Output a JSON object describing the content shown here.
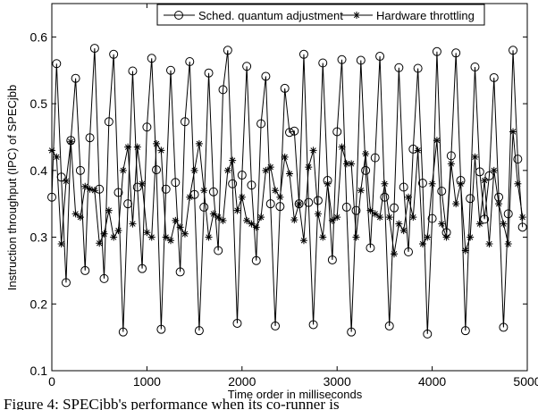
{
  "chart_data": {
    "type": "line",
    "title": "",
    "xlabel": "Time order in milliseconds",
    "ylabel": "Instruction throughput (IPC) of SPECjbb",
    "xlim": [
      0,
      5000
    ],
    "ylim": [
      0.1,
      0.65
    ],
    "x_ticks": [
      0,
      1000,
      2000,
      3000,
      4000,
      5000
    ],
    "y_ticks": [
      0.1,
      0.2,
      0.3,
      0.4,
      0.5,
      0.6
    ],
    "x_tick_labels": [
      "0",
      "1000",
      "2000",
      "3000",
      "4000",
      "5000"
    ],
    "y_tick_labels": [
      "0.1",
      "0.2",
      "0.3",
      "0.4",
      "0.5",
      "0.6"
    ],
    "grid": false,
    "legend_position": "top",
    "caption_fragment": "Figure 4:  SPECjbb's performance when its co-runner is",
    "series": [
      {
        "name": "Sched. quantum adjustment",
        "marker": "circle",
        "color": "#000000",
        "x": [
          0,
          50,
          100,
          150,
          200,
          250,
          300,
          350,
          400,
          450,
          500,
          550,
          600,
          650,
          700,
          750,
          800,
          850,
          900,
          950,
          1000,
          1050,
          1100,
          1150,
          1200,
          1250,
          1300,
          1350,
          1400,
          1450,
          1500,
          1550,
          1600,
          1650,
          1700,
          1750,
          1800,
          1850,
          1900,
          1950,
          2000,
          2050,
          2100,
          2150,
          2200,
          2250,
          2300,
          2350,
          2400,
          2450,
          2500,
          2550,
          2600,
          2650,
          2700,
          2750,
          2800,
          2850,
          2900,
          2950,
          3000,
          3050,
          3100,
          3150,
          3200,
          3250,
          3300,
          3350,
          3400,
          3450,
          3500,
          3550,
          3600,
          3650,
          3700,
          3750,
          3800,
          3850,
          3900,
          3950,
          4000,
          4050,
          4100,
          4150,
          4200,
          4250,
          4300,
          4350,
          4400,
          4450,
          4500,
          4550,
          4600,
          4650,
          4700,
          4750,
          4800,
          4850,
          4900,
          4950
        ],
        "values": [
          0.36,
          0.56,
          0.39,
          0.232,
          0.445,
          0.538,
          0.4,
          0.25,
          0.449,
          0.583,
          0.372,
          0.238,
          0.473,
          0.574,
          0.367,
          0.158,
          0.35,
          0.549,
          0.375,
          0.253,
          0.465,
          0.568,
          0.401,
          0.162,
          0.372,
          0.55,
          0.382,
          0.248,
          0.473,
          0.563,
          0.364,
          0.16,
          0.345,
          0.546,
          0.368,
          0.28,
          0.521,
          0.58,
          0.38,
          0.171,
          0.393,
          0.556,
          0.378,
          0.265,
          0.47,
          0.541,
          0.35,
          0.167,
          0.346,
          0.523,
          0.457,
          0.459,
          0.35,
          0.574,
          0.352,
          0.169,
          0.355,
          0.561,
          0.385,
          0.266,
          0.458,
          0.566,
          0.345,
          0.158,
          0.34,
          0.565,
          0.4,
          0.284,
          0.419,
          0.571,
          0.36,
          0.167,
          0.344,
          0.554,
          0.375,
          0.278,
          0.432,
          0.553,
          0.381,
          0.155,
          0.328,
          0.578,
          0.369,
          0.307,
          0.422,
          0.576,
          0.385,
          0.16,
          0.358,
          0.555,
          0.398,
          0.327,
          0.392,
          0.539,
          0.36,
          0.165,
          0.335,
          0.58,
          0.417,
          0.315
        ]
      },
      {
        "name": "Hardware throttling",
        "marker": "star",
        "color": "#000000",
        "x": [
          0,
          50,
          100,
          150,
          200,
          250,
          300,
          350,
          400,
          450,
          500,
          550,
          600,
          650,
          700,
          750,
          800,
          850,
          900,
          950,
          1000,
          1050,
          1100,
          1150,
          1200,
          1250,
          1300,
          1350,
          1400,
          1450,
          1500,
          1550,
          1600,
          1650,
          1700,
          1750,
          1800,
          1850,
          1900,
          1950,
          2000,
          2050,
          2100,
          2150,
          2200,
          2250,
          2300,
          2350,
          2400,
          2450,
          2500,
          2550,
          2600,
          2650,
          2700,
          2750,
          2800,
          2850,
          2900,
          2950,
          3000,
          3050,
          3100,
          3150,
          3200,
          3250,
          3300,
          3350,
          3400,
          3450,
          3500,
          3550,
          3600,
          3650,
          3700,
          3750,
          3800,
          3850,
          3900,
          3950,
          4000,
          4050,
          4100,
          4150,
          4200,
          4250,
          4300,
          4350,
          4400,
          4450,
          4500,
          4550,
          4600,
          4650,
          4700,
          4750,
          4800,
          4850,
          4900,
          4950
        ],
        "values": [
          0.43,
          0.42,
          0.29,
          0.384,
          0.443,
          0.335,
          0.33,
          0.376,
          0.372,
          0.37,
          0.291,
          0.305,
          0.34,
          0.3,
          0.31,
          0.4,
          0.435,
          0.32,
          0.435,
          0.38,
          0.307,
          0.3,
          0.44,
          0.43,
          0.3,
          0.295,
          0.325,
          0.315,
          0.305,
          0.36,
          0.4,
          0.44,
          0.37,
          0.3,
          0.335,
          0.33,
          0.325,
          0.4,
          0.415,
          0.34,
          0.36,
          0.325,
          0.32,
          0.315,
          0.33,
          0.4,
          0.405,
          0.37,
          0.36,
          0.42,
          0.395,
          0.326,
          0.35,
          0.295,
          0.405,
          0.43,
          0.335,
          0.3,
          0.38,
          0.325,
          0.33,
          0.435,
          0.41,
          0.41,
          0.3,
          0.37,
          0.425,
          0.34,
          0.335,
          0.33,
          0.38,
          0.33,
          0.275,
          0.32,
          0.31,
          0.36,
          0.33,
          0.43,
          0.29,
          0.3,
          0.38,
          0.445,
          0.32,
          0.3,
          0.41,
          0.35,
          0.38,
          0.28,
          0.3,
          0.42,
          0.32,
          0.385,
          0.29,
          0.4,
          0.35,
          0.32,
          0.29,
          0.458,
          0.38,
          0.33
        ]
      }
    ]
  }
}
